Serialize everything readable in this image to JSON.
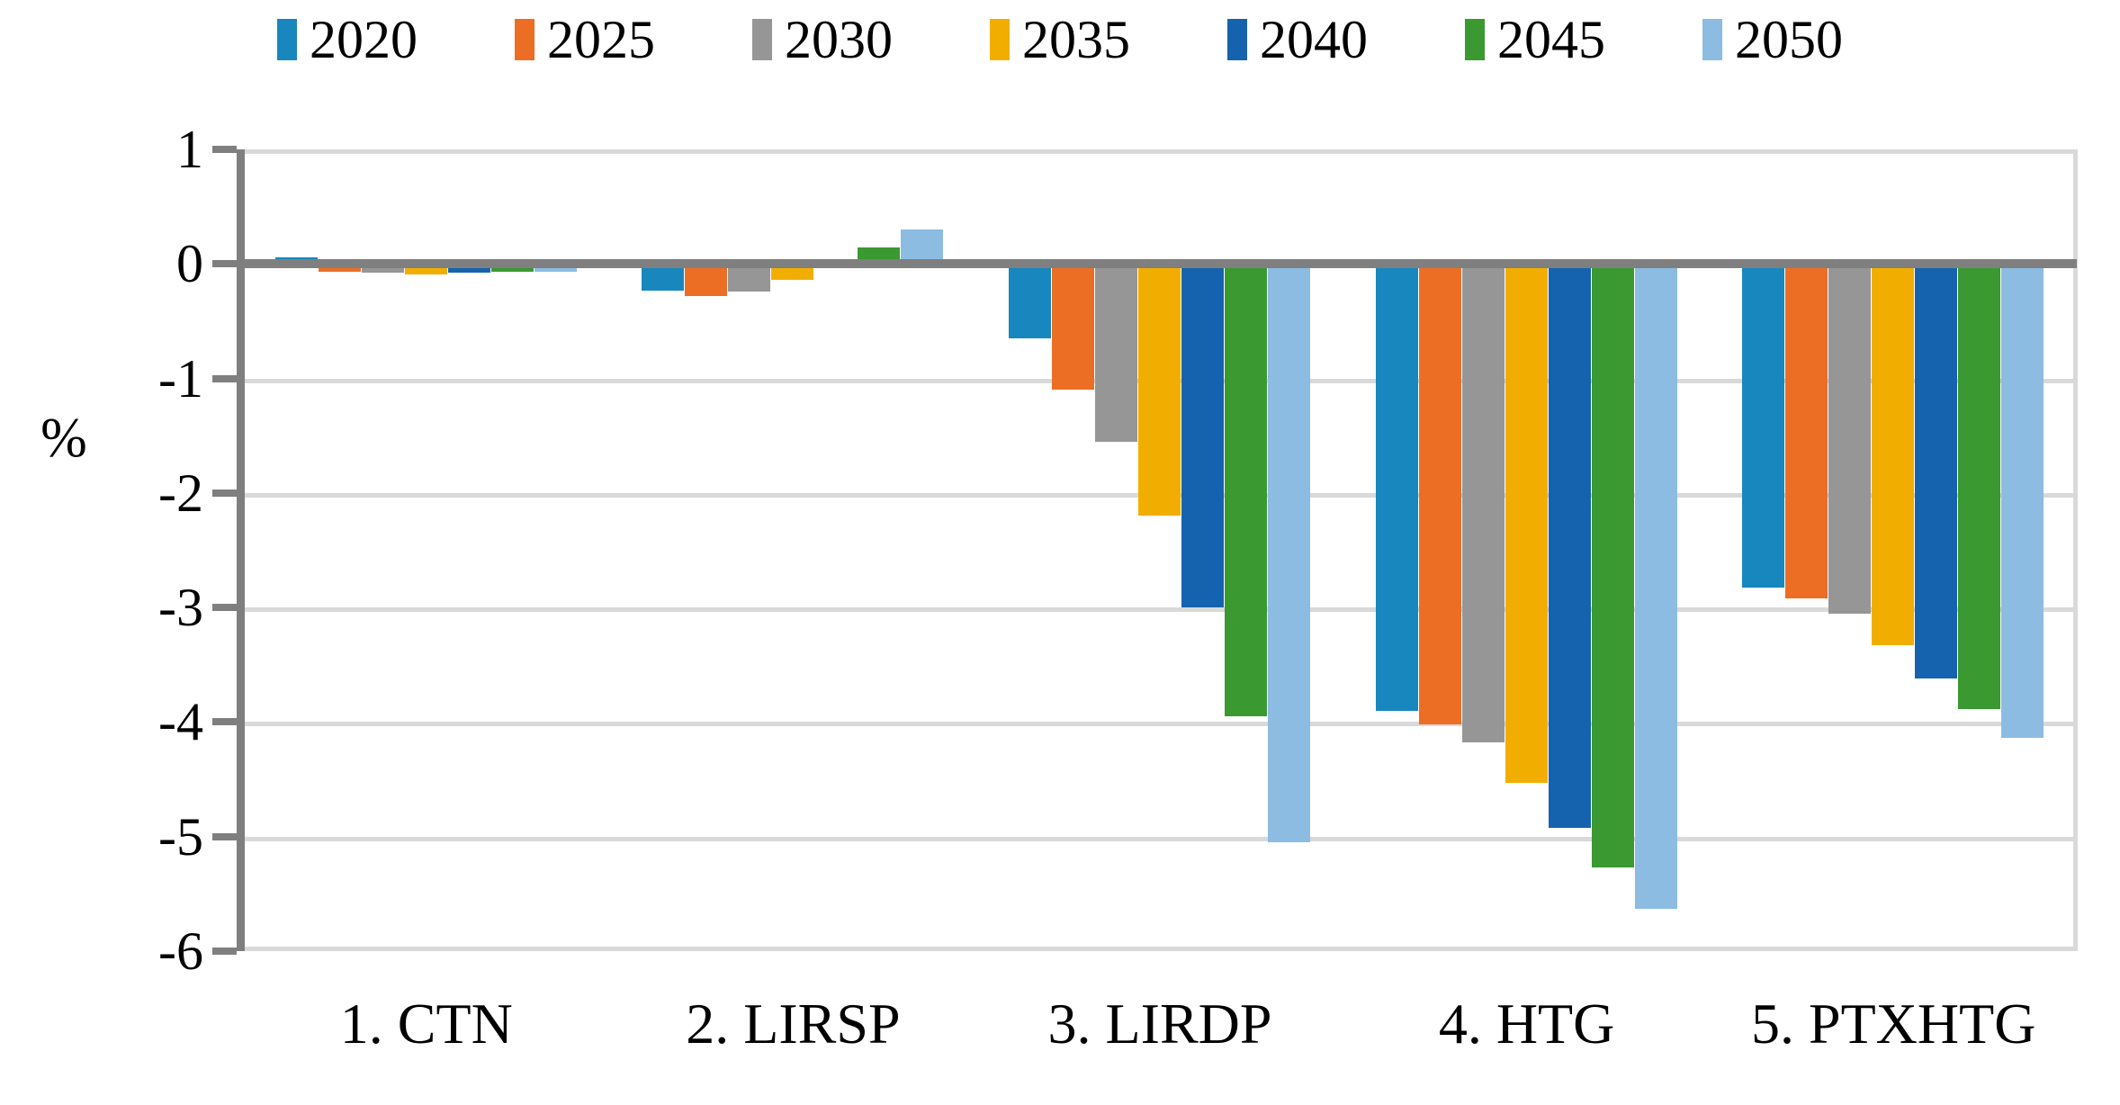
{
  "chart_data": {
    "type": "bar",
    "title": "",
    "ylabel": "%",
    "xlabel": "",
    "categories": [
      "1. CTN",
      "2. LIRSP",
      "3. LIRDP",
      "4. HTG",
      "5. PTXHTG"
    ],
    "series": [
      {
        "name": "2020",
        "color": "#1787BE",
        "values": [
          0.06,
          -0.23,
          -0.65,
          -3.9,
          -2.83
        ]
      },
      {
        "name": "2025",
        "color": "#EC6E25",
        "values": [
          -0.07,
          -0.28,
          -1.1,
          -4.02,
          -2.92
        ]
      },
      {
        "name": "2030",
        "color": "#969696",
        "values": [
          -0.08,
          -0.24,
          -1.55,
          -4.18,
          -3.05
        ]
      },
      {
        "name": "2035",
        "color": "#F2AE00",
        "values": [
          -0.09,
          -0.14,
          -2.2,
          -4.53,
          -3.33
        ]
      },
      {
        "name": "2040",
        "color": "#1563AE",
        "values": [
          -0.08,
          -0.01,
          -3.0,
          -4.92,
          -3.62
        ]
      },
      {
        "name": "2045",
        "color": "#3A9931",
        "values": [
          -0.07,
          0.14,
          -3.95,
          -5.27,
          -3.89
        ]
      },
      {
        "name": "2050",
        "color": "#8CBCE2",
        "values": [
          -0.07,
          0.3,
          -5.05,
          -5.63,
          -4.14
        ]
      }
    ],
    "ylim": [
      -6,
      1
    ],
    "ytick_step": 1,
    "ytick_labels": [
      "1",
      "0",
      "-1",
      "-2",
      "-3",
      "-4",
      "-5",
      "-6"
    ],
    "grid": true,
    "legend_position": "top"
  },
  "colors": {
    "background": "#FFFFFF",
    "axis": "#7F7F7F",
    "gridline": "#D9D9D9",
    "text": "#000000"
  }
}
